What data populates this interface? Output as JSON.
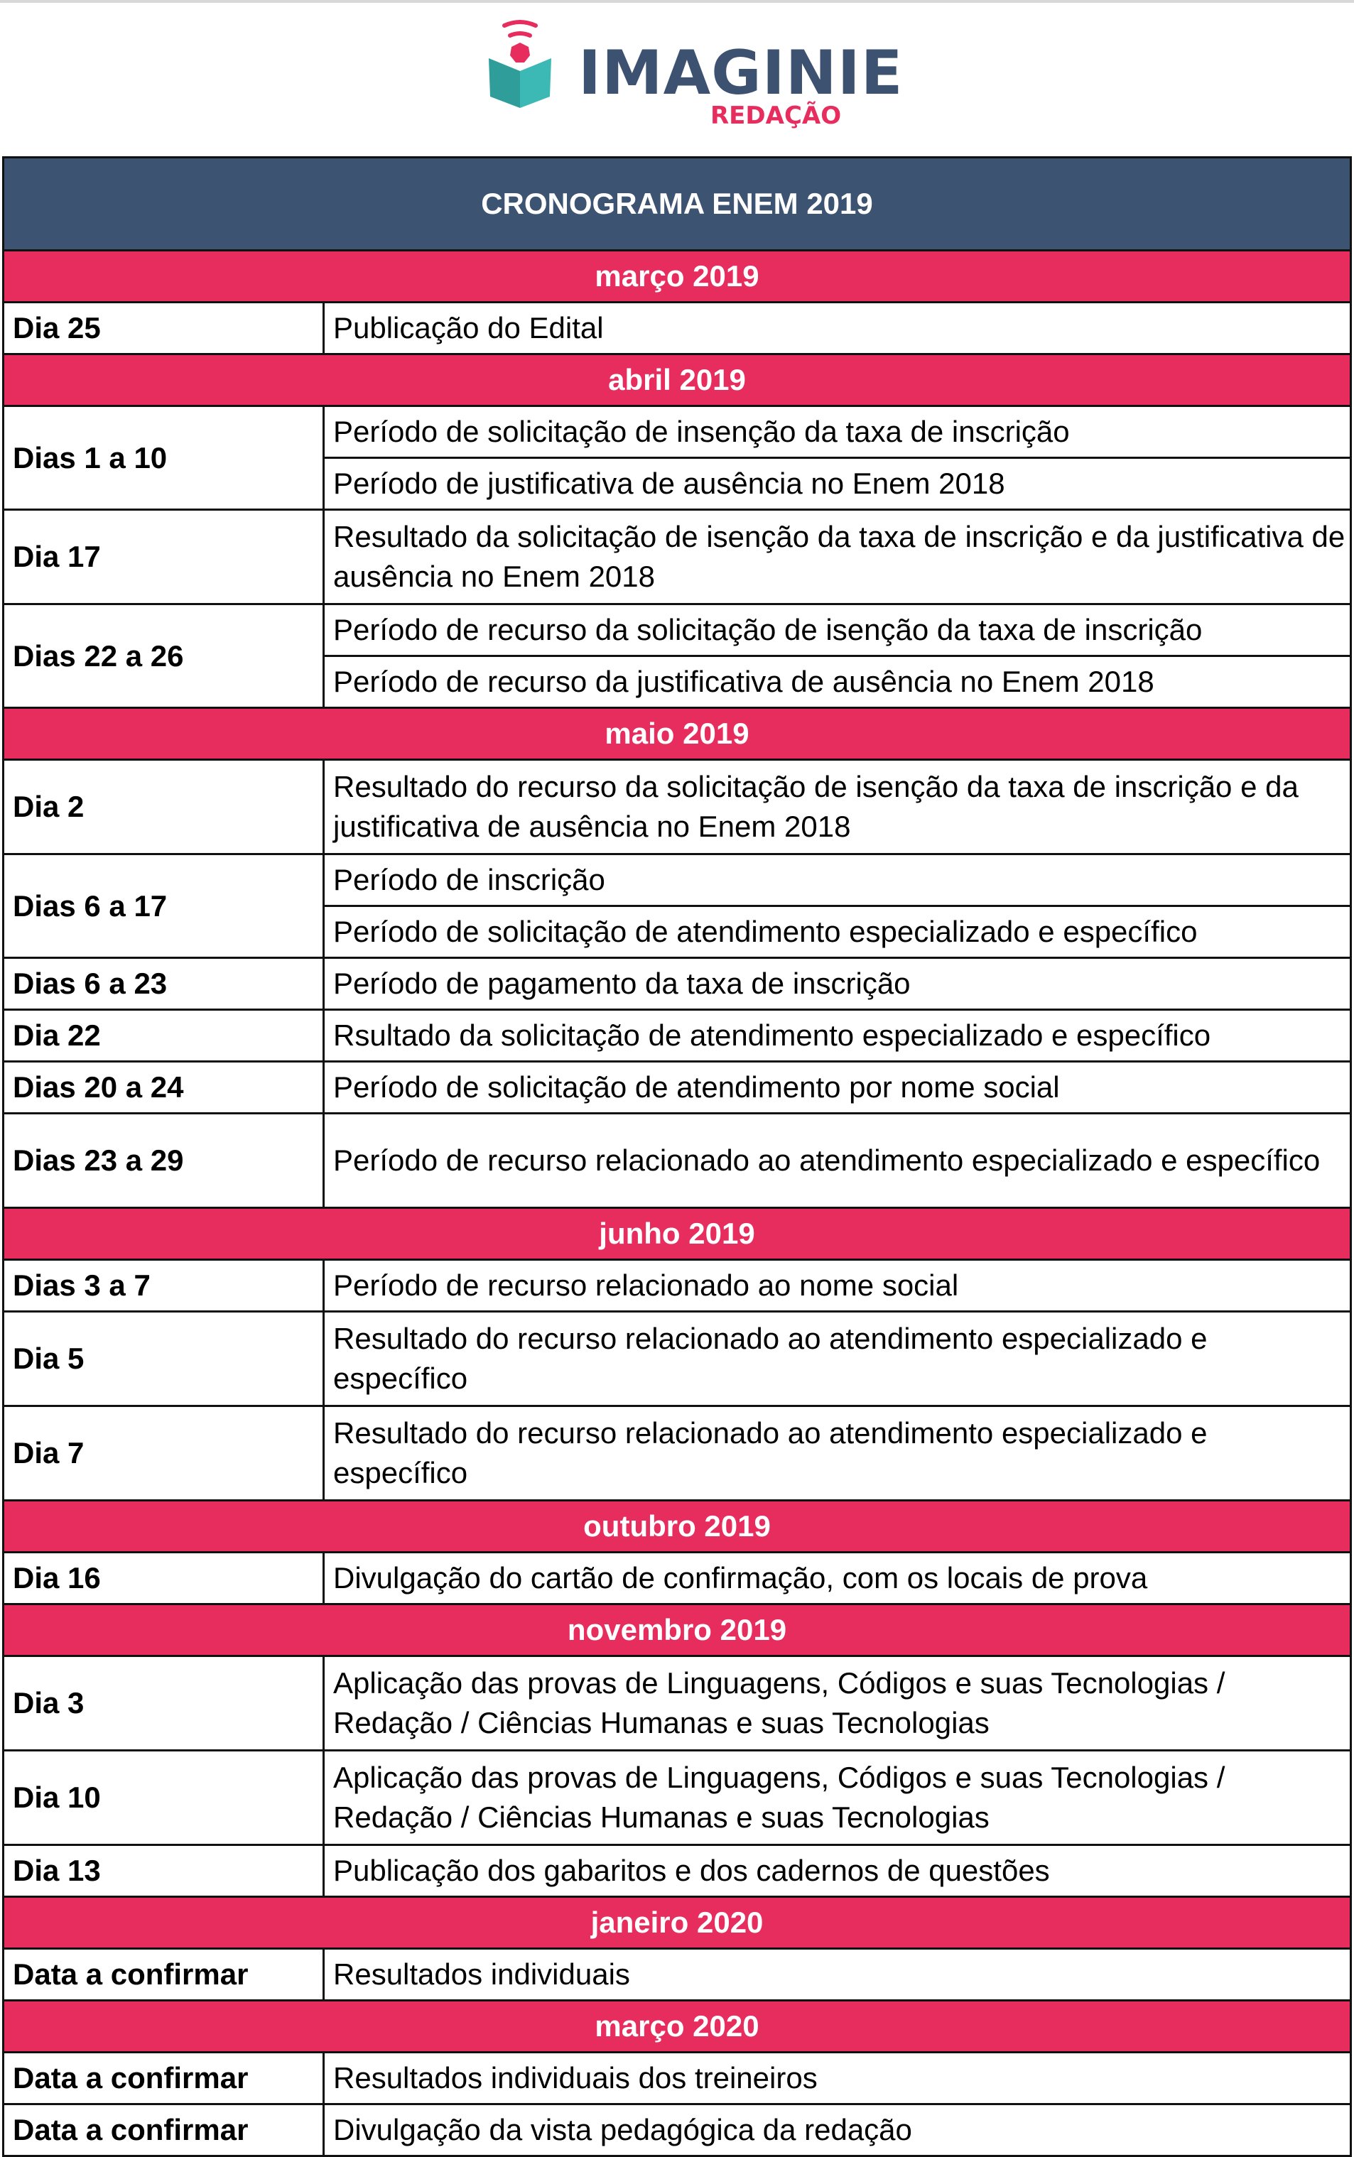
{
  "logo": {
    "word": "IMAGINIE",
    "sub": "REDAÇÃO",
    "colors": {
      "navy": "#3d5270",
      "pink": "#e62d5e",
      "teal": "#3cb8b5"
    }
  },
  "title": "CRONOGRAMA ENEM 2019",
  "colors": {
    "header_bg": "#3d5372",
    "month_bg": "#e62d5e"
  },
  "months": [
    {
      "label": "março 2019",
      "entries": [
        {
          "date": "Dia 25",
          "items": [
            "Publicação do Edital"
          ]
        }
      ]
    },
    {
      "label": "abril 2019",
      "entries": [
        {
          "date": "Dias 1 a 10",
          "items": [
            "Período de solicitação de insenção da taxa de inscrição",
            "Período de justificativa de ausência no Enem 2018"
          ]
        },
        {
          "date": "Dia 17",
          "items": [
            "Resultado da solicitação de isenção da taxa de inscrição e da justificativa de ausência no Enem 2018"
          ]
        },
        {
          "date": "Dias 22 a 26",
          "items": [
            "Período de recurso da solicitação de isenção da taxa de inscrição",
            "Período de recurso da justificativa de ausência no Enem 2018"
          ]
        }
      ]
    },
    {
      "label": "maio 2019",
      "entries": [
        {
          "date": "Dia 2",
          "items": [
            "Resultado do recurso da solicitação de isenção da taxa de inscrição e da justificativa de ausência no Enem 2018"
          ]
        },
        {
          "date": "Dias 6 a 17",
          "items": [
            "Período de inscrição",
            "Período de solicitação de atendimento especializado e específico"
          ]
        },
        {
          "date": "Dias 6 a 23",
          "items": [
            "Período de pagamento da taxa de inscrição"
          ]
        },
        {
          "date": "Dia 22",
          "items": [
            "Rsultado da solicitação de atendimento especializado e específico"
          ]
        },
        {
          "date": "Dias 20 a 24",
          "items": [
            "Período de solicitação de atendimento por nome social"
          ]
        },
        {
          "date": "Dias 23 a 29",
          "items": [
            "Período de recurso relacionado ao atendimento especializado e específico"
          ]
        }
      ]
    },
    {
      "label": "junho 2019",
      "entries": [
        {
          "date": "Dias 3 a 7",
          "items": [
            "Período de recurso relacionado ao nome social"
          ]
        },
        {
          "date": "Dia 5",
          "items": [
            "Resultado do recurso relacionado ao atendimento especializado e específico"
          ]
        },
        {
          "date": "Dia 7",
          "items": [
            "Resultado do recurso relacionado ao atendimento especializado e específico"
          ]
        }
      ]
    },
    {
      "label": "outubro 2019",
      "entries": [
        {
          "date": "Dia 16",
          "items": [
            "Divulgação do cartão de confirmação, com os locais de prova"
          ]
        }
      ]
    },
    {
      "label": "novembro 2019",
      "entries": [
        {
          "date": "Dia 3",
          "items": [
            "Aplicação das provas de Linguagens, Códigos e suas Tecnologias / Redação / Ciências Humanas e suas Tecnologias"
          ]
        },
        {
          "date": "Dia 10",
          "items": [
            "Aplicação das provas de Linguagens, Códigos e suas Tecnologias / Redação / Ciências Humanas e suas Tecnologias"
          ]
        },
        {
          "date": "Dia 13",
          "items": [
            "Publicação dos gabaritos e dos cadernos de questões"
          ]
        }
      ]
    },
    {
      "label": "janeiro 2020",
      "entries": [
        {
          "date": "Data a confirmar",
          "items": [
            "Resultados individuais"
          ]
        }
      ]
    },
    {
      "label": "março 2020",
      "entries": [
        {
          "date": "Data a confirmar",
          "items": [
            "Resultados individuais dos treineiros"
          ]
        },
        {
          "date": "Data a confirmar",
          "items": [
            "Divulgação da vista pedagógica da redação"
          ]
        }
      ]
    }
  ]
}
